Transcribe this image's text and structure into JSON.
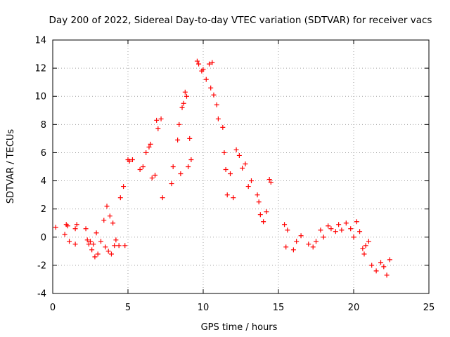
{
  "chart_data": {
    "type": "scatter",
    "title": "Day 200 of 2022, Sidereal Day-to-day VTEC variation (SDTVAR) for receiver vacs",
    "xlabel": "GPS time / hours",
    "ylabel": "SDTVAR / TECUs",
    "xlim": [
      0,
      25
    ],
    "ylim": [
      -4,
      14
    ],
    "xticks": [
      0,
      5,
      10,
      15,
      20,
      25
    ],
    "yticks": [
      -4,
      -2,
      0,
      2,
      4,
      6,
      8,
      10,
      12,
      14
    ],
    "grid": true,
    "marker": "plus",
    "color": "#ff0000",
    "series": [
      {
        "name": "SDTVAR",
        "x": [
          0.2,
          0.8,
          0.9,
          1.0,
          1.1,
          1.5,
          1.5,
          1.6,
          2.2,
          2.3,
          2.4,
          2.5,
          2.6,
          2.7,
          2.8,
          2.9,
          3.0,
          3.2,
          3.4,
          3.5,
          3.6,
          3.7,
          3.8,
          3.9,
          4.0,
          4.1,
          4.2,
          4.4,
          4.5,
          4.7,
          4.8,
          5.0,
          5.1,
          5.3,
          5.8,
          6.0,
          6.2,
          6.4,
          6.5,
          6.6,
          6.8,
          6.9,
          7.0,
          7.2,
          7.3,
          7.9,
          8.0,
          8.3,
          8.4,
          8.5,
          8.6,
          8.7,
          8.8,
          8.9,
          9.0,
          9.1,
          9.2,
          9.6,
          9.7,
          9.9,
          10.0,
          10.2,
          10.4,
          10.5,
          10.6,
          10.7,
          10.9,
          11.0,
          11.3,
          11.4,
          11.5,
          11.6,
          11.8,
          12.0,
          12.2,
          12.4,
          12.6,
          12.8,
          13.0,
          13.2,
          13.6,
          13.7,
          13.8,
          14.0,
          14.2,
          14.4,
          14.5,
          15.4,
          15.5,
          15.6,
          16.0,
          16.2,
          16.5,
          17.0,
          17.3,
          17.5,
          17.8,
          18.0,
          18.3,
          18.5,
          18.8,
          19.0,
          19.2,
          19.5,
          19.8,
          20.0,
          20.2,
          20.4,
          20.6,
          20.7,
          20.8,
          21.0,
          21.2,
          21.5,
          21.8,
          22.0,
          22.2,
          22.4
        ],
        "y": [
          0.7,
          0.2,
          0.9,
          0.8,
          -0.3,
          0.6,
          -0.5,
          0.9,
          0.6,
          -0.2,
          -0.5,
          -0.3,
          -0.9,
          -0.5,
          -1.4,
          0.3,
          -1.2,
          -0.3,
          1.2,
          -0.7,
          2.2,
          -1.0,
          1.5,
          -1.2,
          1.0,
          -0.6,
          -0.2,
          -0.6,
          2.8,
          3.6,
          -0.6,
          5.5,
          5.4,
          5.5,
          4.8,
          5.0,
          6.0,
          6.4,
          6.6,
          4.2,
          4.4,
          8.3,
          7.7,
          8.4,
          2.8,
          3.8,
          5.0,
          6.9,
          8.0,
          4.5,
          9.2,
          9.5,
          10.3,
          10.0,
          5.0,
          7.0,
          5.5,
          12.5,
          12.3,
          11.8,
          11.9,
          11.2,
          12.3,
          10.6,
          12.4,
          10.1,
          9.4,
          8.4,
          7.8,
          6.0,
          4.8,
          3.0,
          4.5,
          2.8,
          6.2,
          5.8,
          4.9,
          5.2,
          3.6,
          4.0,
          3.0,
          2.5,
          1.6,
          1.1,
          1.8,
          4.1,
          3.9,
          0.9,
          -0.7,
          0.5,
          -0.9,
          -0.3,
          0.1,
          -0.5,
          -0.7,
          -0.3,
          0.5,
          0.0,
          0.8,
          0.6,
          0.4,
          0.9,
          0.5,
          1.0,
          0.6,
          0.0,
          1.1,
          0.4,
          -0.8,
          -1.2,
          -0.6,
          -0.3,
          -2.0,
          -2.4,
          -1.8,
          -2.1,
          -2.7,
          -1.6
        ]
      }
    ]
  }
}
